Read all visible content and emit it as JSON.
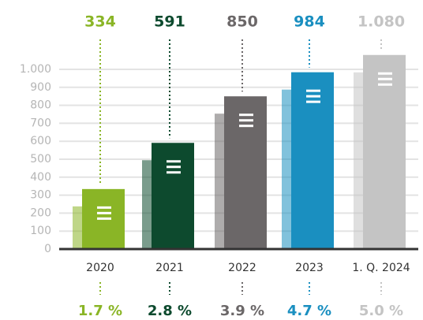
{
  "chart_data": {
    "type": "bar",
    "categories": [
      "2020",
      "2021",
      "2022",
      "2023",
      "1. Q. 2024"
    ],
    "values": [
      334,
      591,
      850,
      984,
      1080
    ],
    "value_labels": [
      "334",
      "591",
      "850",
      "984",
      "1.080"
    ],
    "colors": [
      "#8ab526",
      "#0d4a2e",
      "#6b6768",
      "#1a8fc0",
      "#c4c4c4"
    ],
    "rate_values": [
      1.7,
      2.8,
      3.9,
      4.7,
      5.0
    ],
    "rate_labels": [
      "1.7 %",
      "2.8 %",
      "3.9 %",
      "4.7 %",
      "5.0 %"
    ],
    "ylim": [
      0,
      1000
    ],
    "yticks": [
      0,
      100,
      200,
      300,
      400,
      500,
      600,
      700,
      800,
      900,
      {
        "value": 1000,
        "label": "1.000"
      }
    ],
    "grid": true
  }
}
